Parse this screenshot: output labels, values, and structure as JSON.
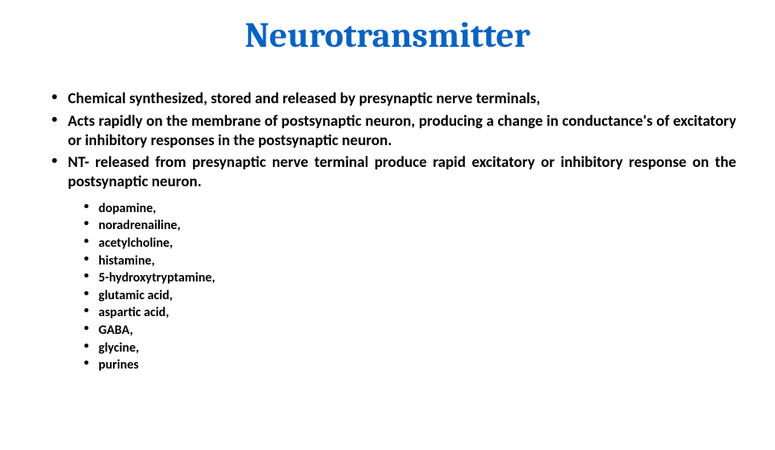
{
  "title": "Neurotransmitter",
  "title_color": "#0563c1",
  "main_bullets": [
    "Chemical synthesized, stored and released by presynaptic nerve terminals,",
    "Acts rapidly on the membrane of postsynaptic neuron, producing a change in conductance's of excitatory or inhibitory responses in the postsynaptic neuron.",
    "NT- released from presynaptic nerve terminal produce rapid excitatory or inhibitory response on the postsynaptic neuron."
  ],
  "sub_bullets": [
    "dopamine,",
    "noradrenailine,",
    "acetylcholine,",
    "histamine,",
    "5-hydroxytryptamine,",
    "glutamic acid,",
    "aspartic acid,",
    "GABA,",
    "glycine,",
    "purines"
  ],
  "background_color": "#ffffff",
  "text_color": "#000000",
  "title_fontsize": 44,
  "main_fontsize": 19,
  "sub_fontsize": 16
}
